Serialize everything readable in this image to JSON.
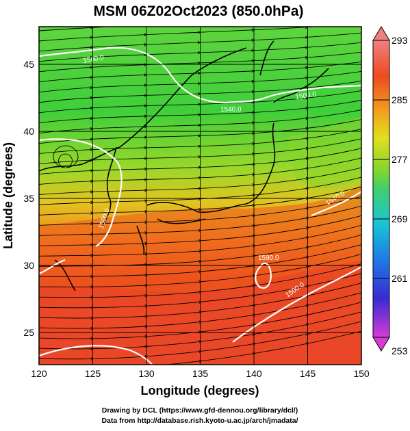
{
  "title": "MSM 06Z02Oct2023 (850.0hPa)",
  "axes": {
    "xlabel": "Longitude (degrees)",
    "ylabel": "Latitude  (degrees)",
    "x_ticks": [
      "120",
      "125",
      "130",
      "135",
      "140",
      "145",
      "150"
    ],
    "y_ticks": [
      "25",
      "30",
      "35",
      "40",
      "45"
    ],
    "xlim": [
      120,
      150
    ],
    "ylim": [
      22.4,
      47.6
    ]
  },
  "colorbar": {
    "labels": [
      "293",
      "285",
      "277",
      "269",
      "261",
      "253"
    ],
    "range": [
      253,
      293
    ],
    "colors": [
      "#d63bd6",
      "#3a2bd0",
      "#1f73e6",
      "#19c4d6",
      "#3fd06a",
      "#8ad62a",
      "#e0e01e",
      "#f2a81e",
      "#ee5a1e",
      "#f08080"
    ]
  },
  "contour_labels": [
    "1560.0",
    "1540.0",
    "1500.0",
    "1500.0",
    "1540.0",
    "1500.0",
    "1590.0"
  ],
  "credits": {
    "line1": "Drawing by DCL (https://www.gfd-dennou.org/library/dcl/)",
    "line2": "Data from http://database.rish.kyoto-u.ac.jp/arch/jmadata/"
  }
}
